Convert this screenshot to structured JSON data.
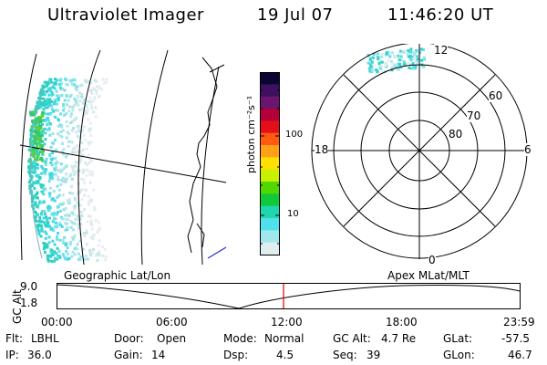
{
  "header": {
    "instrument": "Ultraviolet Imager",
    "date": "19 Jul 07",
    "time": "11:46:20 UT"
  },
  "colorbar": {
    "unit_label": "photon cm⁻²s⁻¹",
    "ticks": [
      "100",
      "10"
    ],
    "colors": [
      "#0b0533",
      "#3d1060",
      "#6a1670",
      "#b3003a",
      "#e3101a",
      "#ff5a10",
      "#ff9f1a",
      "#ffe000",
      "#c8f000",
      "#50d800",
      "#10c83a",
      "#20d6b0",
      "#50e0ec",
      "#a0e8ec",
      "#e0eef0"
    ]
  },
  "polar": {
    "labels": {
      "top": "12",
      "bottom": "0",
      "left": "18",
      "right": "6",
      "lat60": "60",
      "lat70": "70",
      "lat80": "80"
    }
  },
  "timeline": {
    "left_caption": "Geographic Lat/Lon",
    "right_caption": "Apex MLat/MLT",
    "axis_title": "GC Alt",
    "y_ticks": [
      "9.0",
      "1.8"
    ],
    "x_ticks": [
      "00:00",
      "06:00",
      "12:00",
      "18:00",
      "23:59"
    ],
    "current_time_marker": "11:46:20",
    "marker_color": "#e00000"
  },
  "status": {
    "row1": [
      {
        "key": "Flt:",
        "value": "LBHL"
      },
      {
        "key": "Door:",
        "value": "Open"
      },
      {
        "key": "Mode:",
        "value": "Normal"
      },
      {
        "key": "GC Alt:",
        "value": "4.7 Re"
      },
      {
        "key": "GLat:",
        "value": "-57.5"
      }
    ],
    "row2": [
      {
        "key": "IP:",
        "value": "36.0"
      },
      {
        "key": "Gain:",
        "value": "14"
      },
      {
        "key": "Dsp:",
        "value": "4.5"
      },
      {
        "key": "Seq:",
        "value": "39"
      },
      {
        "key": "GLon:",
        "value": "46.7"
      }
    ]
  }
}
